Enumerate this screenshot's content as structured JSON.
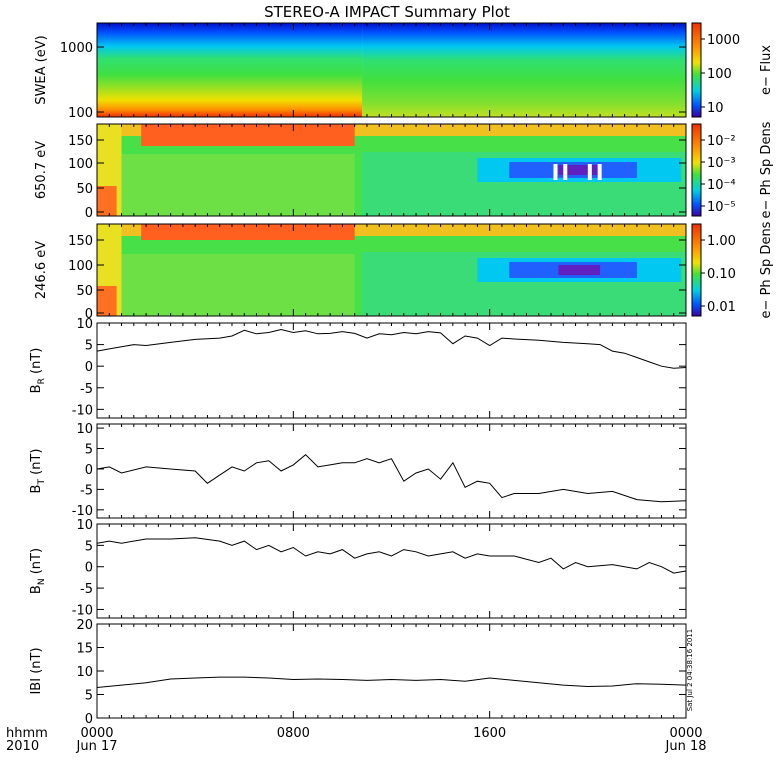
{
  "title": "STEREO-A IMPACT Summary Plot",
  "footer": {
    "hhmm_label": "hhmm",
    "year_label": "2010",
    "ticks": [
      {
        "time": "0000",
        "date": "Jun 17",
        "hour": 0
      },
      {
        "time": "0800",
        "date": "",
        "hour": 8
      },
      {
        "time": "1600",
        "date": "",
        "hour": 16
      },
      {
        "time": "0000",
        "date": "Jun 18",
        "hour": 24
      }
    ],
    "stamp": "Sat Jul  2 04:38:16 2011"
  },
  "colorbars": [
    {
      "label": "e− Flux",
      "ticks": [
        "1000",
        "100",
        "10"
      ]
    },
    {
      "label": "e− Ph Sp Dens",
      "ticks": [
        "10⁻²",
        "10⁻³",
        "10⁻⁴",
        "10⁻⁵"
      ]
    },
    {
      "label": "e− Ph Sp Dens",
      "ticks": [
        "1.00",
        "0.10",
        "0.01"
      ]
    }
  ],
  "chart_data": [
    {
      "type": "heatmap",
      "ylabel": "SWEA (eV)",
      "yscale": "log",
      "ylim": [
        100,
        2000
      ],
      "yticks": [
        "1000",
        "100"
      ],
      "xlim": [
        0,
        24
      ],
      "colorbar": "e− Flux",
      "description_values": {
        "low_energy_flux_high_until_hour": 10.5
      }
    },
    {
      "type": "heatmap",
      "ylabel": "650.7 eV",
      "ylim": [
        0,
        180
      ],
      "yticks": [
        "150",
        "100",
        "50",
        "0"
      ],
      "xlim": [
        0,
        24
      ],
      "colorbar": "e− Ph Sp Dens"
    },
    {
      "type": "heatmap",
      "ylabel": "246.6 eV",
      "ylim": [
        0,
        180
      ],
      "yticks": [
        "150",
        "100",
        "50",
        "0"
      ],
      "xlim": [
        0,
        24
      ],
      "colorbar": "e− Ph Sp Dens"
    },
    {
      "type": "line",
      "ylabel": "B_R (nT)",
      "ylabel_main": "B",
      "ylabel_sub": "R",
      "ylabel_unit": " (nT)",
      "ylim": [
        -12,
        10
      ],
      "yticks": [
        "10",
        "5",
        "0",
        "-5",
        "-10"
      ],
      "xlim": [
        0,
        24
      ],
      "x": [
        0,
        0.5,
        1,
        1.5,
        2,
        3,
        4,
        5,
        5.5,
        6,
        6.5,
        7,
        7.5,
        8,
        8.5,
        9,
        9.5,
        10,
        10.5,
        11,
        11.5,
        12,
        12.5,
        13,
        13.5,
        14,
        14.5,
        15,
        15.5,
        16,
        16.5,
        17,
        18,
        19,
        20,
        20.5,
        21,
        21.5,
        22,
        22.5,
        23,
        23.5,
        24
      ],
      "y": [
        3.5,
        4,
        4.5,
        5,
        4.8,
        5.5,
        6.2,
        6.5,
        7,
        8.3,
        7.5,
        7.8,
        8.5,
        7.8,
        8.2,
        7.5,
        7.6,
        8,
        7.6,
        6.5,
        7.5,
        7.3,
        7.8,
        7.5,
        8,
        7.7,
        5.2,
        7,
        6.5,
        4.8,
        6.5,
        6.3,
        6,
        5.5,
        5.2,
        5,
        3.5,
        3,
        2,
        1,
        0,
        -0.5,
        -0.3
      ]
    },
    {
      "type": "line",
      "ylabel": "B_T (nT)",
      "ylabel_main": "B",
      "ylabel_sub": "T",
      "ylabel_unit": " (nT)",
      "ylim": [
        -12,
        11
      ],
      "yticks": [
        "10",
        "5",
        "0",
        "-5",
        "-10"
      ],
      "xlim": [
        0,
        24
      ],
      "x": [
        0,
        0.5,
        1,
        2,
        3,
        4,
        4.5,
        5,
        5.5,
        6,
        6.5,
        7,
        7.5,
        8,
        8.5,
        9,
        9.5,
        10,
        10.5,
        11,
        11.5,
        12,
        12.5,
        13,
        13.5,
        14,
        14.5,
        15,
        15.5,
        16,
        16.5,
        17,
        18,
        19,
        20,
        21,
        22,
        23,
        24
      ],
      "y": [
        0,
        0.5,
        -1,
        0.5,
        0,
        -0.5,
        -3.5,
        -1.5,
        0.5,
        -0.5,
        1.5,
        2,
        -0.5,
        1,
        3.5,
        0.5,
        1,
        1.5,
        1.5,
        2.5,
        1.5,
        2.5,
        -3,
        -1,
        0,
        -2.5,
        1.5,
        -4.5,
        -3,
        -3.5,
        -7,
        -6,
        -6,
        -5,
        -6,
        -5.5,
        -7.5,
        -8,
        -7.8
      ]
    },
    {
      "type": "line",
      "ylabel": "B_N (nT)",
      "ylabel_main": "B",
      "ylabel_sub": "N",
      "ylabel_unit": " (nT)",
      "ylim": [
        -12,
        10
      ],
      "yticks": [
        "10",
        "5",
        "0",
        "-5",
        "-10"
      ],
      "xlim": [
        0,
        24
      ],
      "x": [
        0,
        0.5,
        1,
        2,
        3,
        4,
        5,
        5.5,
        6,
        6.5,
        7,
        7.5,
        8,
        8.5,
        9,
        9.5,
        10,
        10.5,
        11,
        11.5,
        12,
        12.5,
        13,
        13.5,
        14,
        14.5,
        15,
        15.5,
        16,
        17,
        18,
        18.5,
        19,
        19.5,
        20,
        21,
        22,
        22.5,
        23,
        23.5,
        24
      ],
      "y": [
        5.5,
        6,
        5.5,
        6.5,
        6.5,
        6.8,
        6,
        5,
        6,
        4,
        5,
        3.5,
        4.5,
        2.5,
        3.5,
        3,
        4,
        2,
        3,
        3.5,
        2.5,
        4,
        3.5,
        2.5,
        3,
        3.5,
        2,
        3,
        2.5,
        2.5,
        1,
        2,
        -0.5,
        1,
        0,
        0.5,
        -0.5,
        1,
        0,
        -1.5,
        -1
      ]
    },
    {
      "type": "line",
      "ylabel": "|B| (nT)",
      "ylabel_main": "IBI",
      "ylabel_sub": "",
      "ylabel_unit": " (nT)",
      "ylim": [
        0,
        20
      ],
      "yticks": [
        "20",
        "15",
        "10",
        "5",
        "0"
      ],
      "xlim": [
        0,
        24
      ],
      "x": [
        0,
        1,
        2,
        3,
        4,
        5,
        6,
        7,
        8,
        9,
        10,
        11,
        12,
        13,
        14,
        15,
        16,
        17,
        18,
        19,
        20,
        21,
        22,
        23,
        24
      ],
      "y": [
        6.5,
        7,
        7.5,
        8.3,
        8.5,
        8.7,
        8.7,
        8.5,
        8.2,
        8.3,
        8.2,
        8,
        8.2,
        8,
        8.2,
        7.8,
        8.5,
        8,
        7.5,
        7,
        6.7,
        6.8,
        7.3,
        7.2,
        7
      ]
    }
  ]
}
